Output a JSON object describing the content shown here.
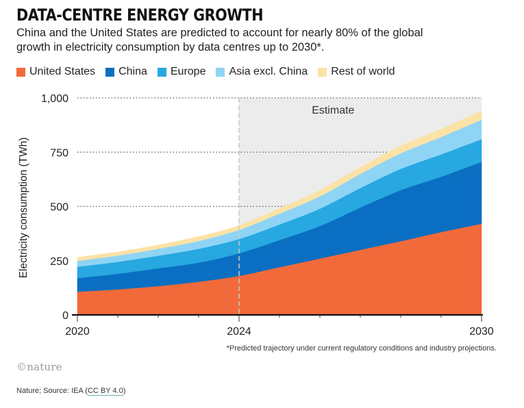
{
  "title": "DATA-CENTRE ENERGY GROWTH",
  "subtitle": "China and the United States are predicted to account for nearly 80% of the global growth in electricity consumption by data centres up to 2030*.",
  "logo": "©nature",
  "source_prefix": "Nature; Source: IEA (",
  "source_link": "CC BY 4.0",
  "source_suffix": ")",
  "footnote": "*Predicted trajectory under current regulatory conditions and industry projections.",
  "chart_data": {
    "type": "area",
    "stacked": true,
    "title": "DATA-CENTRE ENERGY GROWTH",
    "ylabel": "Electricity consumption (TWh)",
    "xlabel": "",
    "ylim": [
      0,
      1000
    ],
    "xlim": [
      2020,
      2030
    ],
    "y_ticks": [
      0,
      250,
      500,
      750,
      1000
    ],
    "y_tick_labels": [
      "0",
      "250",
      "500",
      "750",
      "1,000"
    ],
    "x_ticks": [
      2020,
      2024,
      2030
    ],
    "x_tick_labels": [
      "2020",
      "2024",
      "2030"
    ],
    "grid": "horizontal dotted",
    "legend_position": "top",
    "estimate_region": {
      "from": 2024,
      "to": 2030,
      "label": "Estimate",
      "color": "#ececec"
    },
    "x": [
      2020,
      2021,
      2022,
      2023,
      2024,
      2025,
      2026,
      2027,
      2028,
      2029,
      2030
    ],
    "series": [
      {
        "name": "United States",
        "color": "#f26a3a",
        "values": [
          107,
          118,
          133,
          153,
          180,
          220,
          260,
          300,
          340,
          382,
          420
        ]
      },
      {
        "name": "China",
        "color": "#0a6fc2",
        "values": [
          63,
          72,
          82,
          88,
          104,
          125,
          150,
          195,
          235,
          255,
          285
        ]
      },
      {
        "name": "Europe",
        "color": "#27a8e0",
        "values": [
          52,
          55,
          58,
          64,
          66,
          72,
          80,
          90,
          98,
          103,
          105
        ]
      },
      {
        "name": "Asia excl. China",
        "color": "#8fd4f5",
        "values": [
          27,
          29,
          32,
          36,
          42,
          50,
          57,
          65,
          72,
          80,
          90
        ]
      },
      {
        "name": "Rest of world",
        "color": "#fbe2a6",
        "values": [
          16,
          16,
          17,
          20,
          20,
          23,
          27,
          30,
          33,
          36,
          40
        ]
      }
    ]
  }
}
